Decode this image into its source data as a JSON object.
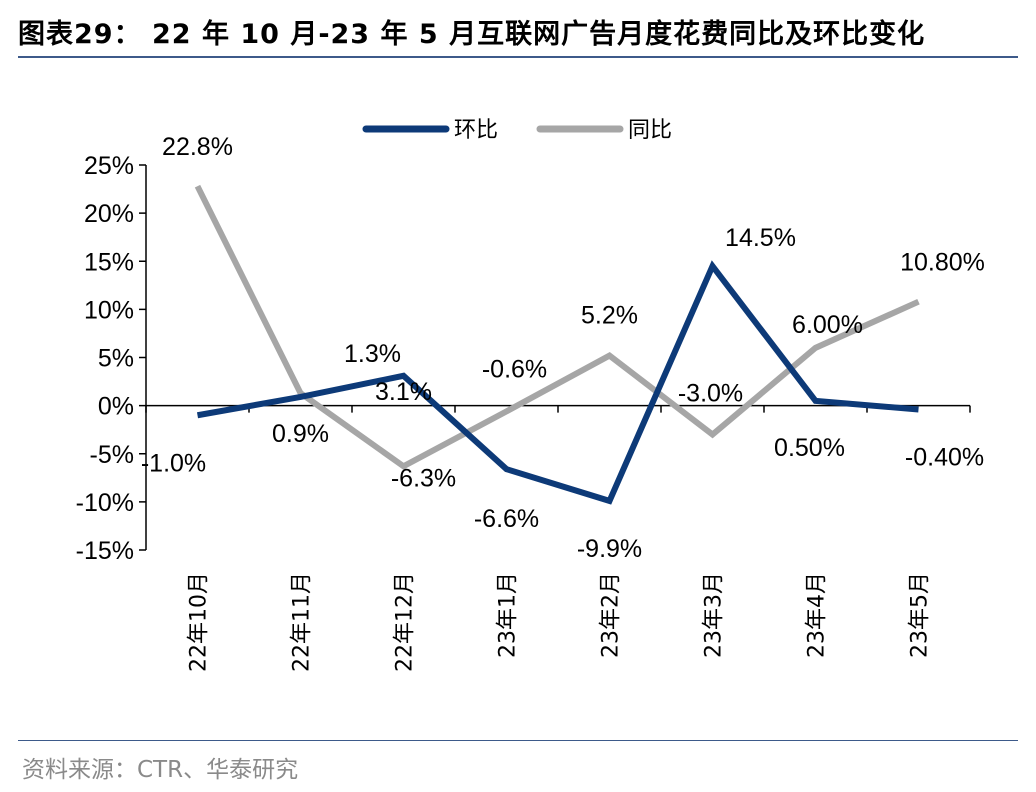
{
  "title": "图表29： 22 年 10 月-23 年 5 月互联网广告月度花费同比及环比变化",
  "source": "资料来源：CTR、华泰研究",
  "chart_data": {
    "type": "line",
    "categories": [
      "22年10月",
      "22年11月",
      "22年12月",
      "23年1月",
      "23年2月",
      "23年3月",
      "23年4月",
      "23年5月"
    ],
    "series": [
      {
        "name": "环比",
        "color": "#0d3a78",
        "values": [
          -1.0,
          0.9,
          3.1,
          -6.6,
          -9.9,
          14.5,
          0.5,
          -0.4
        ],
        "labels": [
          "-1.0%",
          "0.9%",
          "3.1%",
          "-6.6%",
          "-9.9%",
          "14.5%",
          "0.50%",
          "-0.40%"
        ]
      },
      {
        "name": "同比",
        "color": "#a6a6a6",
        "values": [
          22.8,
          1.3,
          -6.3,
          -0.6,
          5.2,
          -3.0,
          6.0,
          10.8
        ],
        "labels": [
          "22.8%",
          "1.3%",
          "-6.3%",
          "-0.6%",
          "5.2%",
          "-3.0%",
          "6.00%",
          "10.80%"
        ]
      }
    ],
    "yticks": [
      "25%",
      "20%",
      "15%",
      "10%",
      "5%",
      "0%",
      "-5%",
      "-10%",
      "-15%"
    ],
    "ylim": [
      -15,
      25
    ],
    "legend": "top-center",
    "grid": false
  }
}
